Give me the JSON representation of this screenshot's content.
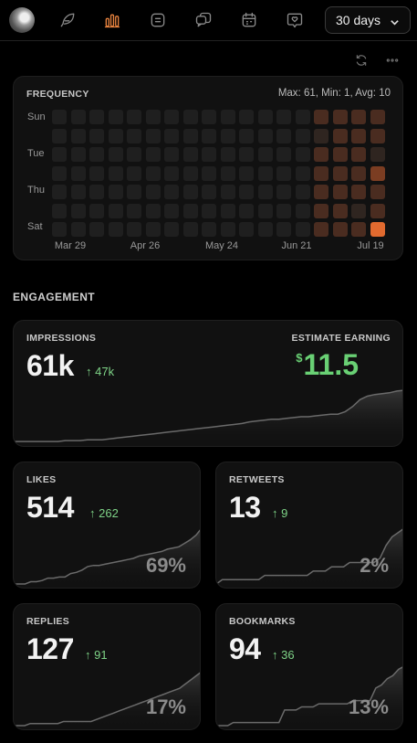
{
  "nav": {
    "avatar": "user-avatar",
    "icons": [
      {
        "name": "feather-icon",
        "active": false
      },
      {
        "name": "bar-chart-icon",
        "active": true
      },
      {
        "name": "document-list-icon",
        "active": false
      },
      {
        "name": "chat-bubbles-icon",
        "active": false
      },
      {
        "name": "calendar-icon",
        "active": false
      },
      {
        "name": "heart-message-icon",
        "active": false
      }
    ],
    "range_label": "30 days"
  },
  "toolbar": {
    "icons": [
      "refresh-icon",
      "more-horizontal-icon"
    ]
  },
  "frequency": {
    "title": "FREQUENCY",
    "stats": "Max: 61, Min: 1, Avg: 10",
    "day_labels": [
      "Sun",
      "Tue",
      "Thu",
      "Sat"
    ],
    "month_labels": [
      "Mar 29",
      "Apr 26",
      "May 24",
      "Jun 21",
      "Jul 19"
    ],
    "columns": 18,
    "rows": 7,
    "grid": [
      [
        0,
        0,
        0,
        0,
        0,
        0,
        0,
        0,
        0,
        0,
        0,
        0,
        0,
        0,
        2,
        2,
        2,
        2
      ],
      [
        0,
        0,
        0,
        0,
        0,
        0,
        0,
        0,
        0,
        0,
        0,
        0,
        0,
        0,
        1,
        2,
        2,
        2
      ],
      [
        0,
        0,
        0,
        0,
        0,
        0,
        0,
        0,
        0,
        0,
        0,
        0,
        0,
        0,
        2,
        2,
        2,
        1
      ],
      [
        0,
        0,
        0,
        0,
        0,
        0,
        0,
        0,
        0,
        0,
        0,
        0,
        0,
        0,
        2,
        2,
        2,
        3
      ],
      [
        0,
        0,
        0,
        0,
        0,
        0,
        0,
        0,
        0,
        0,
        0,
        0,
        0,
        0,
        2,
        2,
        2,
        2
      ],
      [
        0,
        0,
        0,
        0,
        0,
        0,
        0,
        0,
        0,
        0,
        0,
        0,
        0,
        0,
        2,
        2,
        1,
        2
      ],
      [
        0,
        0,
        0,
        0,
        0,
        0,
        0,
        0,
        0,
        0,
        0,
        0,
        0,
        0,
        2,
        2,
        2,
        4
      ]
    ],
    "colors": [
      "#1f1f1f",
      "#2f2520",
      "#4a2c20",
      "#7b3d22",
      "#e16a2f"
    ]
  },
  "engagement": {
    "title": "ENGAGEMENT",
    "impressions": {
      "label": "IMPRESSIONS",
      "value": "61k",
      "delta": "↑ 47k",
      "earning_label": "ESTIMATE EARNING",
      "currency": "$",
      "earning": "11.5",
      "trend": [
        1,
        1,
        1,
        1,
        1,
        1,
        1,
        2,
        2,
        2,
        3,
        3,
        3,
        4,
        5,
        6,
        7,
        8,
        9,
        10,
        11,
        12,
        13,
        14,
        15,
        16,
        17,
        18,
        19,
        20,
        21,
        22,
        24,
        25,
        26,
        27,
        27,
        28,
        29,
        30,
        30,
        31,
        32,
        33,
        33,
        36,
        42,
        50,
        54,
        56,
        57,
        58,
        60,
        61
      ]
    },
    "likes": {
      "label": "LIKES",
      "value": "514",
      "delta": "↑ 262",
      "percent": "69%",
      "trend": [
        0,
        0,
        0,
        2,
        2,
        3,
        5,
        5,
        6,
        6,
        9,
        10,
        12,
        15,
        16,
        16,
        17,
        18,
        19,
        20,
        21,
        22,
        24,
        25,
        26,
        27,
        28,
        30,
        31,
        32,
        35,
        38,
        42,
        48
      ]
    },
    "retweets": {
      "label": "RETWEETS",
      "value": "13",
      "delta": "↑ 9",
      "percent": "2%",
      "trend": [
        0,
        1,
        1,
        1,
        1,
        1,
        1,
        1,
        2,
        2,
        2,
        2,
        2,
        2,
        2,
        2,
        3,
        3,
        3,
        4,
        4,
        4,
        5,
        5,
        5,
        5,
        5,
        6,
        9,
        11,
        12,
        13
      ]
    },
    "replies": {
      "label": "REPLIES",
      "value": "127",
      "delta": "↑ 91",
      "percent": "17%",
      "trend": [
        0,
        0,
        0,
        1,
        1,
        1,
        1,
        1,
        1,
        2,
        2,
        2,
        2,
        2,
        2,
        3,
        4,
        5,
        6,
        7,
        8,
        9,
        10,
        11,
        12,
        13,
        14,
        15,
        16,
        17,
        18,
        20,
        22,
        24,
        26
      ]
    },
    "bookmarks": {
      "label": "BOOKMARKS",
      "value": "94",
      "delta": "↑ 36",
      "percent": "13%",
      "trend": [
        0,
        0,
        0,
        1,
        1,
        1,
        1,
        1,
        1,
        1,
        1,
        1,
        5,
        5,
        5,
        6,
        6,
        6,
        7,
        7,
        7,
        7,
        7,
        7,
        8,
        8,
        8,
        8,
        12,
        13,
        15,
        16,
        18,
        19
      ]
    }
  }
}
